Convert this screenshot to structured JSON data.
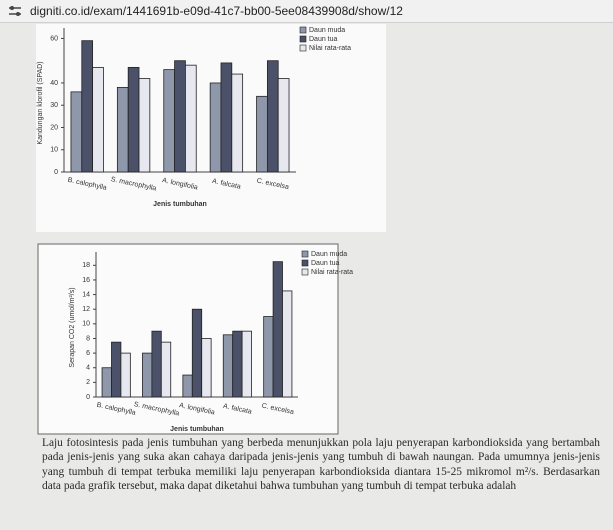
{
  "browser": {
    "url": "digniti.co.id/exam/1441691b-e09d-41c7-bb00-5ee08439908d/show/12"
  },
  "chart_data": [
    {
      "type": "bar",
      "ylabel": "Kandungan klorofil (SPAD)",
      "xlabel": "Jenis tumbuhan",
      "categories": [
        "B. calophylla",
        "S. macrophylla",
        "A. longifolia",
        "A. falcata",
        "C. excelsa"
      ],
      "series": [
        {
          "name": "Daun muda",
          "color": "#8f97ab",
          "values": [
            36,
            38,
            46,
            40,
            34
          ]
        },
        {
          "name": "Daun tua",
          "color": "#4b5168",
          "values": [
            59,
            47,
            50,
            49,
            50
          ]
        },
        {
          "name": "Nilai rata-rata",
          "color": "#e6e7ef",
          "values": [
            47,
            42,
            48,
            44,
            42
          ]
        }
      ],
      "ylim": [
        0,
        62
      ],
      "yticks": [
        0,
        10,
        20,
        30,
        40,
        60
      ],
      "legend": "top-right"
    },
    {
      "type": "bar",
      "ylabel": "Serapan CO2 (umol/m²/s)",
      "xlabel": "Jenis tumbuhan",
      "categories": [
        "B. calophylla",
        "S. macrophylla",
        "A. longifolia",
        "A. falcata",
        "C. excelsa"
      ],
      "series": [
        {
          "name": "Daun muda",
          "color": "#8f97ab",
          "values": [
            4,
            6,
            3,
            8.5,
            11
          ]
        },
        {
          "name": "Daun tua",
          "color": "#4b5168",
          "values": [
            7.5,
            9,
            12,
            9,
            18.5
          ]
        },
        {
          "name": "Nilai rata-rata",
          "color": "#e6e7ef",
          "values": [
            6,
            7.5,
            8,
            9,
            14.5
          ]
        }
      ],
      "ylim": [
        0,
        19
      ],
      "yticks": [
        0,
        2,
        4,
        6,
        8,
        10,
        12,
        14,
        16,
        18
      ],
      "legend": "top-right"
    }
  ],
  "paragraph": "Laju fotosintesis pada jenis tumbuhan yang berbeda menunjukkan pola laju penyerapan karbondioksida yang bertambah pada jenis-jenis yang suka akan cahaya daripada jenis-jenis yang tumbuh di bawah naungan. Pada umumnya jenis-jenis yang tumbuh di tempat terbuka memiliki laju penyerapan karbondioksida diantara 15-25 mikromol m²/s. Berdasarkan data pada grafik tersebut, maka dapat diketahui bahwa tumbuhan yang tumbuh di tempat terbuka adalah"
}
